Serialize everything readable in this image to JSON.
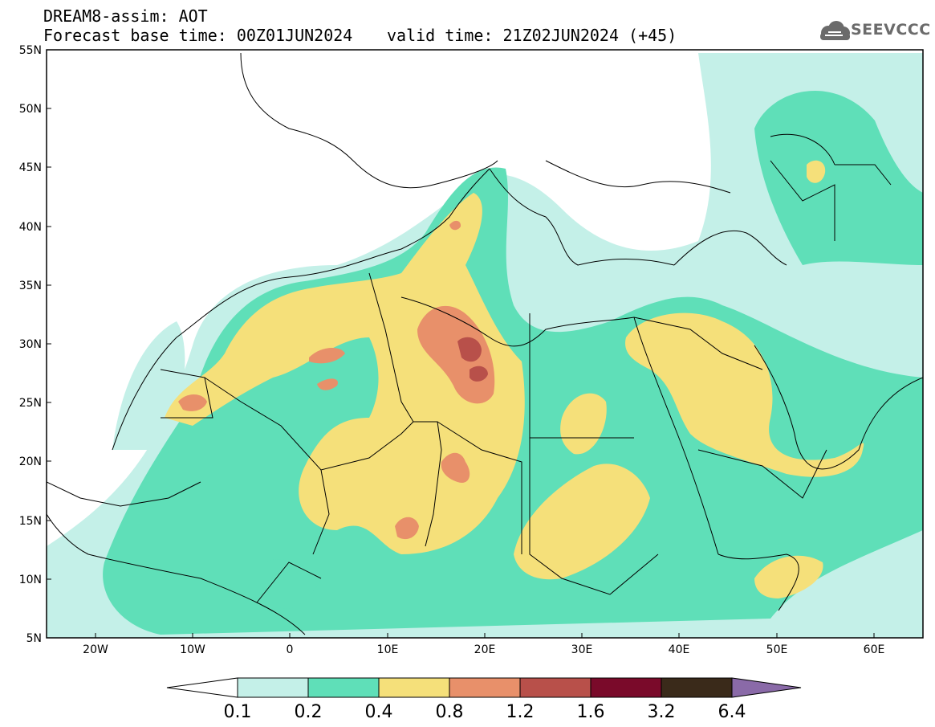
{
  "header": {
    "title": "DREAM8-assim: AOT",
    "base_time": "Forecast base time: 00Z01JUN2024",
    "valid_time": "valid time: 21Z02JUN2024 (+45)",
    "logo_text": "SEEVCCC",
    "logo_color": "#6b6b6b"
  },
  "map": {
    "lon_range": [
      -25,
      65
    ],
    "lat_range": [
      5,
      55
    ],
    "lat_labels": [
      "5N",
      "10N",
      "15N",
      "20N",
      "25N",
      "30N",
      "35N",
      "40N",
      "45N",
      "50N",
      "55N"
    ],
    "lon_labels": [
      "20W",
      "10W",
      "0",
      "10E",
      "20E",
      "30E",
      "40E",
      "50E",
      "60E"
    ],
    "land_color": "#ffffff",
    "border_color": "#000000"
  },
  "colorbar": {
    "labels": [
      "0.1",
      "0.2",
      "0.4",
      "0.8",
      "1.2",
      "1.6",
      "3.2",
      "6.4"
    ],
    "colors": [
      "#c4f0e8",
      "#5fdfb8",
      "#f5e07a",
      "#e8906a",
      "#b8504a",
      "#7a0a2a",
      "#3a2a1a",
      "#8a6aa8"
    ],
    "under_color": "#ffffff"
  }
}
